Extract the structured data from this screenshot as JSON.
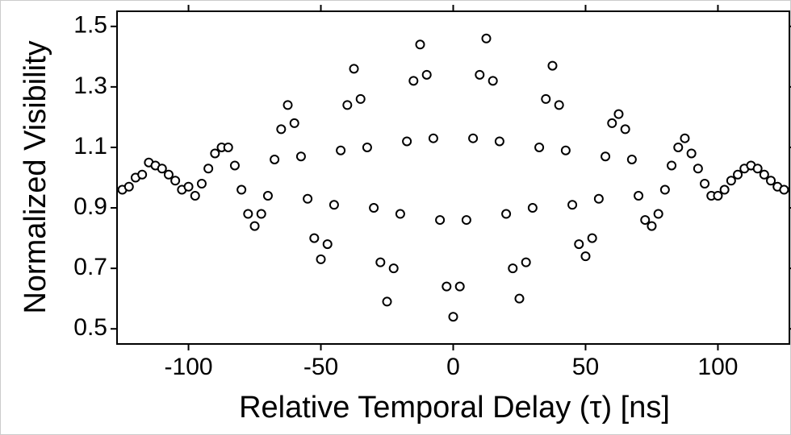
{
  "chart_data": {
    "type": "scatter",
    "xlabel": "Relative Temporal Delay (τ) [ns]",
    "ylabel": "Normalized Visibility",
    "xlim": [
      -127,
      127
    ],
    "ylim": [
      0.45,
      1.55
    ],
    "xticks": [
      -100,
      -50,
      0,
      50,
      100
    ],
    "yticks": [
      0.5,
      0.7,
      0.9,
      1.1,
      1.3,
      1.5
    ],
    "color": "#000000",
    "x": [
      -125,
      -122.5,
      -120,
      -117.5,
      -115,
      -112.5,
      -110,
      -107.5,
      -105,
      -102.5,
      -100,
      -97.5,
      -95,
      -92.5,
      -90,
      -87.5,
      -85,
      -82.5,
      -80,
      -77.5,
      -75,
      -72.5,
      -70,
      -67.5,
      -65,
      -62.5,
      -60,
      -57.5,
      -55,
      -52.5,
      -50,
      -47.5,
      -45,
      -42.5,
      -40,
      -37.5,
      -35,
      -32.5,
      -30,
      -27.5,
      -25,
      -22.5,
      -20,
      -17.5,
      -15,
      -12.5,
      -10,
      -7.5,
      -5,
      -2.5,
      0,
      2.5,
      5,
      7.5,
      10,
      12.5,
      15,
      17.5,
      20,
      22.5,
      25,
      27.5,
      30,
      32.5,
      35,
      37.5,
      40,
      42.5,
      45,
      47.5,
      50,
      52.5,
      55,
      57.5,
      60,
      62.5,
      65,
      67.5,
      70,
      72.5,
      75,
      77.5,
      80,
      82.5,
      85,
      87.5,
      90,
      92.5,
      95,
      97.5,
      100,
      102.5,
      105,
      107.5,
      110,
      112.5,
      115,
      117.5,
      120,
      122.5,
      125
    ],
    "values": [
      0.96,
      0.97,
      1.0,
      1.01,
      1.05,
      1.04,
      1.03,
      1.01,
      0.99,
      0.96,
      0.97,
      0.94,
      0.98,
      1.03,
      1.08,
      1.1,
      1.1,
      1.04,
      0.96,
      0.88,
      0.84,
      0.88,
      0.94,
      1.06,
      1.16,
      1.24,
      1.18,
      1.07,
      0.93,
      0.8,
      0.73,
      0.78,
      0.91,
      1.09,
      1.24,
      1.36,
      1.26,
      1.1,
      0.9,
      0.72,
      0.59,
      0.7,
      0.88,
      1.12,
      1.32,
      1.44,
      1.34,
      1.13,
      0.86,
      0.64,
      0.54,
      0.64,
      0.86,
      1.13,
      1.34,
      1.46,
      1.32,
      1.12,
      0.88,
      0.7,
      0.6,
      0.72,
      0.9,
      1.1,
      1.26,
      1.37,
      1.24,
      1.09,
      0.91,
      0.78,
      0.74,
      0.8,
      0.93,
      1.07,
      1.18,
      1.21,
      1.16,
      1.06,
      0.94,
      0.86,
      0.84,
      0.88,
      0.96,
      1.04,
      1.1,
      1.13,
      1.08,
      1.03,
      0.98,
      0.94,
      0.94,
      0.96,
      0.99,
      1.01,
      1.03,
      1.04,
      1.03,
      1.01,
      0.99,
      0.97,
      0.96
    ]
  }
}
